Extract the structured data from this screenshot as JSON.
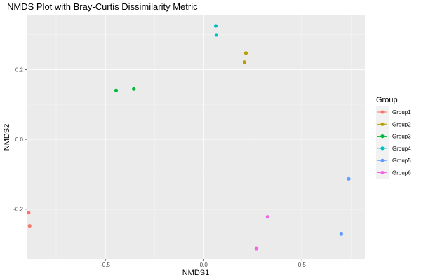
{
  "chart_data": {
    "type": "scatter",
    "title": "NMDS Plot with Bray-Curtis Dissimilarity Metric",
    "xlabel": "NMDS1",
    "ylabel": "NMDS2",
    "xlim": [
      -0.9,
      0.82
    ],
    "ylim": [
      -0.343,
      0.355
    ],
    "xticks": [
      -0.5,
      0.0,
      0.5
    ],
    "xtick_labels": [
      "-0.5",
      "0.0",
      "0.5"
    ],
    "yticks": [
      -0.2,
      0.0,
      0.2
    ],
    "ytick_labels": [
      "-0.2",
      "0.0",
      "0.2"
    ],
    "grid": true,
    "legend": {
      "title": "Group",
      "position": "right"
    },
    "series": [
      {
        "name": "Group1",
        "color": "#F8766D",
        "points": [
          [
            -0.89,
            -0.21
          ],
          [
            -0.885,
            -0.248
          ]
        ]
      },
      {
        "name": "Group2",
        "color": "#B79F00",
        "points": [
          [
            0.215,
            0.247
          ],
          [
            0.208,
            0.221
          ]
        ]
      },
      {
        "name": "Group3",
        "color": "#00BA38",
        "points": [
          [
            -0.445,
            0.14
          ],
          [
            -0.355,
            0.144
          ]
        ]
      },
      {
        "name": "Group4",
        "color": "#00BFC4",
        "points": [
          [
            0.062,
            0.325
          ],
          [
            0.065,
            0.299
          ]
        ]
      },
      {
        "name": "Group5",
        "color": "#619CFF",
        "points": [
          [
            0.738,
            -0.113
          ],
          [
            0.7,
            -0.271
          ]
        ]
      },
      {
        "name": "Group6",
        "color": "#F564E3",
        "points": [
          [
            0.325,
            -0.222
          ],
          [
            0.268,
            -0.313
          ]
        ]
      }
    ]
  }
}
